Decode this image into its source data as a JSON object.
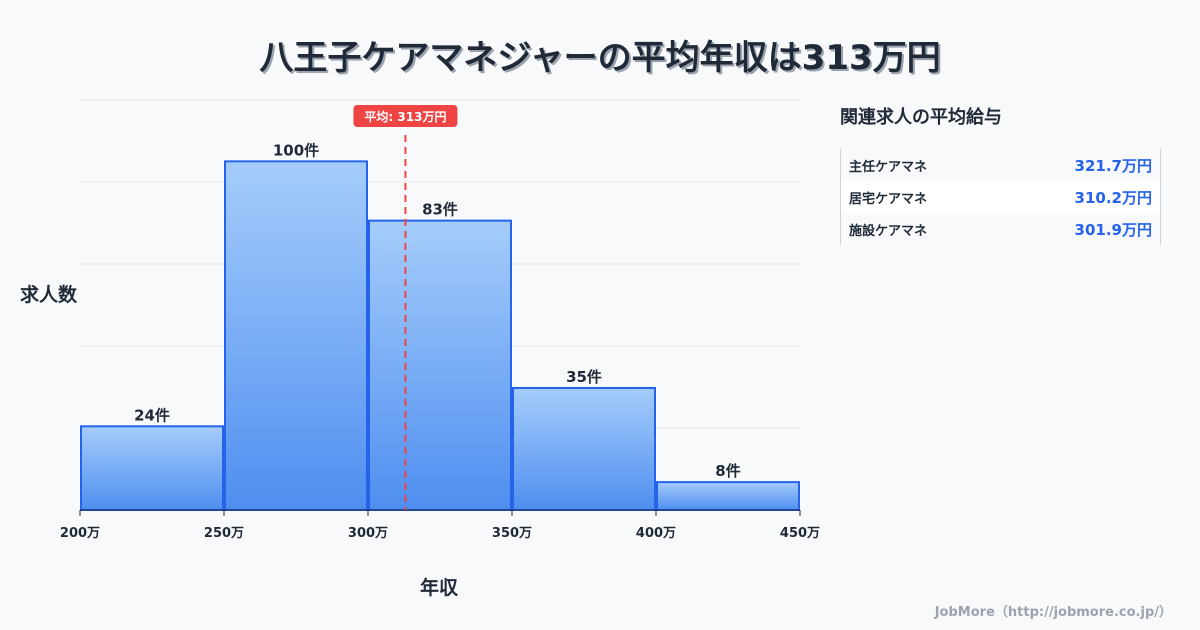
{
  "title": "八王子ケアマネジャーの平均年収は313万円",
  "chart_data": {
    "type": "bar",
    "title": "八王子ケアマネジャーの平均年収は313万円",
    "xlabel": "年収",
    "ylabel": "求人数",
    "bins": [
      [
        200,
        250
      ],
      [
        250,
        300
      ],
      [
        300,
        350
      ],
      [
        350,
        400
      ],
      [
        400,
        450
      ]
    ],
    "values": [
      24,
      100,
      83,
      35,
      8
    ],
    "data_labels": [
      "24件",
      "100件",
      "83件",
      "35件",
      "8件"
    ],
    "x_ticks": [
      200,
      250,
      300,
      350,
      400,
      450
    ],
    "x_tick_labels": [
      "200万",
      "250万",
      "300万",
      "350万",
      "400万",
      "450万"
    ],
    "xlim": [
      200,
      450
    ],
    "ylim": [
      0,
      117.6
    ],
    "grid": true,
    "mean": 313,
    "mean_label": "平均: 313万円",
    "colors": {
      "bar_top": "#a5cdfb",
      "bar_bottom": "#4f8ef0",
      "bar_stroke": "#2563eb",
      "mean_line": "#ef4444"
    }
  },
  "side": {
    "title": "関連求人の平均給与",
    "rows": [
      {
        "name": "主任ケアマネ",
        "value": "321.7万円"
      },
      {
        "name": "居宅ケアマネ",
        "value": "310.2万円"
      },
      {
        "name": "施設ケアマネ",
        "value": "301.9万円"
      }
    ]
  },
  "footer": "JobMore（http://jobmore.co.jp/）"
}
